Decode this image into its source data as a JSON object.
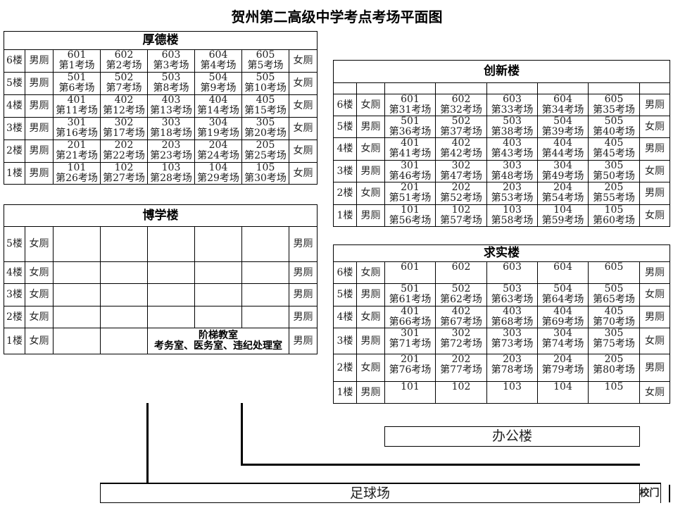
{
  "title": "贺州第二高级中学考点考场平面图",
  "buildings": {
    "houde": {
      "name": "厚德楼",
      "rows": [
        {
          "floor": "6楼",
          "left": "男厕",
          "right": "女厕",
          "rooms": [
            [
              "601",
              "第1考场"
            ],
            [
              "602",
              "第2考场"
            ],
            [
              "603",
              "第3考场"
            ],
            [
              "604",
              "第4考场"
            ],
            [
              "605",
              "第5考场"
            ]
          ]
        },
        {
          "floor": "5楼",
          "left": "男厕",
          "right": "女厕",
          "rooms": [
            [
              "501",
              "第6考场"
            ],
            [
              "502",
              "第7考场"
            ],
            [
              "503",
              "第8考场"
            ],
            [
              "504",
              "第9考场"
            ],
            [
              "505",
              "第10考场"
            ]
          ]
        },
        {
          "floor": "4楼",
          "left": "男厕",
          "right": "女厕",
          "rooms": [
            [
              "401",
              "第11考场"
            ],
            [
              "402",
              "第12考场"
            ],
            [
              "403",
              "第13考场"
            ],
            [
              "404",
              "第14考场"
            ],
            [
              "405",
              "第15考场"
            ]
          ]
        },
        {
          "floor": "3楼",
          "left": "男厕",
          "right": "女厕",
          "rooms": [
            [
              "301",
              "第16考场"
            ],
            [
              "302",
              "第17考场"
            ],
            [
              "303",
              "第18考场"
            ],
            [
              "304",
              "第19考场"
            ],
            [
              "305",
              "第20考场"
            ]
          ]
        },
        {
          "floor": "2楼",
          "left": "男厕",
          "right": "女厕",
          "rooms": [
            [
              "201",
              "第21考场"
            ],
            [
              "202",
              "第22考场"
            ],
            [
              "203",
              "第23考场"
            ],
            [
              "204",
              "第24考场"
            ],
            [
              "205",
              "第25考场"
            ]
          ]
        },
        {
          "floor": "1楼",
          "left": "男厕",
          "right": "女厕",
          "rooms": [
            [
              "101",
              "第26考场"
            ],
            [
              "102",
              "第27考场"
            ],
            [
              "103",
              "第28考场"
            ],
            [
              "104",
              "第29考场"
            ],
            [
              "105",
              "第30考场"
            ]
          ]
        }
      ]
    },
    "boxue": {
      "name": "博学楼",
      "rows": [
        {
          "floor": "5楼",
          "left": "女厕",
          "right": "男厕",
          "rooms": [
            [
              "",
              ""
            ],
            [
              "",
              ""
            ],
            [
              "",
              ""
            ],
            [
              "",
              ""
            ],
            [
              "",
              ""
            ]
          ]
        },
        {
          "floor": "4楼",
          "left": "女厕",
          "right": "男厕",
          "rooms": [
            [
              "",
              ""
            ],
            [
              "",
              ""
            ],
            [
              "",
              ""
            ],
            [
              "",
              ""
            ],
            [
              "",
              ""
            ]
          ]
        },
        {
          "floor": "3楼",
          "left": "女厕",
          "right": "男厕",
          "rooms": [
            [
              "",
              ""
            ],
            [
              "",
              ""
            ],
            [
              "",
              ""
            ],
            [
              "",
              ""
            ],
            [
              "",
              ""
            ]
          ]
        },
        {
          "floor": "2楼",
          "left": "女厕",
          "right": "男厕",
          "rooms": [
            [
              "",
              ""
            ],
            [
              "",
              ""
            ],
            [
              "",
              ""
            ],
            [
              "",
              ""
            ],
            [
              "",
              ""
            ]
          ]
        },
        {
          "floor": "1楼",
          "left": "女厕",
          "right": "男厕",
          "rooms": [
            [
              "",
              ""
            ],
            [
              "",
              ""
            ]
          ],
          "special": [
            "阶梯教室",
            "考务室、医务室、违纪处理室"
          ]
        }
      ]
    },
    "chuangxin": {
      "name": "创新楼",
      "blank_row": true,
      "rows": [
        {
          "floor": "6楼",
          "left": "女厕",
          "right": "男厕",
          "rooms": [
            [
              "601",
              "第31考场"
            ],
            [
              "602",
              "第32考场"
            ],
            [
              "603",
              "第33考场"
            ],
            [
              "604",
              "第34考场"
            ],
            [
              "605",
              "第35考场"
            ]
          ]
        },
        {
          "floor": "5楼",
          "left": "男厕",
          "right": "女厕",
          "rooms": [
            [
              "501",
              "第36考场"
            ],
            [
              "502",
              "第37考场"
            ],
            [
              "503",
              "第38考场"
            ],
            [
              "504",
              "第39考场"
            ],
            [
              "505",
              "第40考场"
            ]
          ]
        },
        {
          "floor": "4楼",
          "left": "女厕",
          "right": "男厕",
          "rooms": [
            [
              "401",
              "第41考场"
            ],
            [
              "402",
              "第42考场"
            ],
            [
              "403",
              "第43考场"
            ],
            [
              "404",
              "第44考场"
            ],
            [
              "405",
              "第45考场"
            ]
          ]
        },
        {
          "floor": "3楼",
          "left": "男厕",
          "right": "女厕",
          "rooms": [
            [
              "301",
              "第46考场"
            ],
            [
              "302",
              "第47考场"
            ],
            [
              "303",
              "第48考场"
            ],
            [
              "304",
              "第49考场"
            ],
            [
              "305",
              "第50考场"
            ]
          ]
        },
        {
          "floor": "2楼",
          "left": "女厕",
          "right": "男厕",
          "rooms": [
            [
              "201",
              "第51考场"
            ],
            [
              "202",
              "第52考场"
            ],
            [
              "203",
              "第53考场"
            ],
            [
              "204",
              "第54考场"
            ],
            [
              "205",
              "第55考场"
            ]
          ]
        },
        {
          "floor": "1楼",
          "left": "男厕",
          "right": "女厕",
          "rooms": [
            [
              "101",
              "第56考场"
            ],
            [
              "102",
              "第57考场"
            ],
            [
              "103",
              "第58考场"
            ],
            [
              "104",
              "第59考场"
            ],
            [
              "105",
              "第60考场"
            ]
          ]
        }
      ]
    },
    "qiushi": {
      "name": "求实楼",
      "rows": [
        {
          "floor": "6楼",
          "left": "女厕",
          "right": "男厕",
          "rooms": [
            [
              "601",
              ""
            ],
            [
              "602",
              ""
            ],
            [
              "603",
              ""
            ],
            [
              "604",
              ""
            ],
            [
              "605",
              ""
            ]
          ]
        },
        {
          "floor": "5楼",
          "left": "男厕",
          "right": "女厕",
          "rooms": [
            [
              "501",
              "第61考场"
            ],
            [
              "502",
              "第62考场"
            ],
            [
              "503",
              "第63考场"
            ],
            [
              "504",
              "第64考场"
            ],
            [
              "505",
              "第65考场"
            ]
          ]
        },
        {
          "floor": "4楼",
          "left": "女厕",
          "right": "男厕",
          "rooms": [
            [
              "401",
              "第66考场"
            ],
            [
              "402",
              "第67考场"
            ],
            [
              "403",
              "第68考场"
            ],
            [
              "404",
              "第69考场"
            ],
            [
              "405",
              "第70考场"
            ]
          ]
        },
        {
          "floor": "3楼",
          "left": "男厕",
          "right": "女厕",
          "rooms": [
            [
              "301",
              "第71考场"
            ],
            [
              "302",
              "第72考场"
            ],
            [
              "303",
              "第73考场"
            ],
            [
              "304",
              "第74考场"
            ],
            [
              "305",
              "第75考场"
            ]
          ]
        },
        {
          "floor": "2楼",
          "left": "女厕",
          "right": "男厕",
          "rooms": [
            [
              "201",
              "第76考场"
            ],
            [
              "202",
              "第77考场"
            ],
            [
              "203",
              "第78考场"
            ],
            [
              "204",
              "第79考场"
            ],
            [
              "205",
              "第80考场"
            ]
          ]
        },
        {
          "floor": "1楼",
          "left": "男厕",
          "right": "女厕",
          "rooms": [
            [
              "101",
              ""
            ],
            [
              "102",
              ""
            ],
            [
              "103",
              ""
            ],
            [
              "104",
              ""
            ],
            [
              "105",
              ""
            ]
          ]
        }
      ]
    }
  },
  "office": "办公楼",
  "field": "足球场",
  "gate": "校门"
}
